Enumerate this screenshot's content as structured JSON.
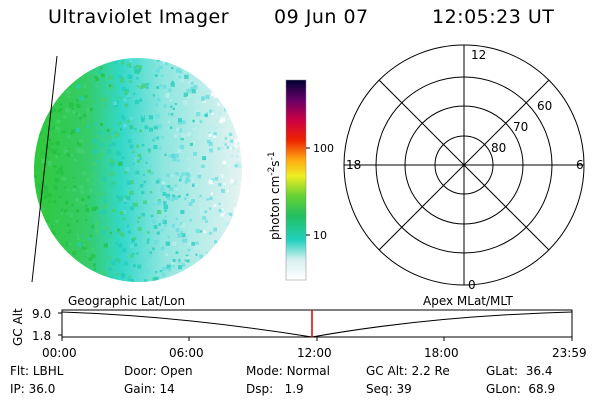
{
  "header": {
    "title": "Ultraviolet Imager",
    "date": "09 Jun 07",
    "time": "12:05:23 UT"
  },
  "colorbar": {
    "unit_main": "photon cm",
    "unit_exp1": "-2",
    "unit_s": "s",
    "unit_exp2": "-1",
    "ticks": [
      "100",
      "10"
    ]
  },
  "polar": {
    "mlt_labels": {
      "top": "12",
      "left": "18",
      "right": "6",
      "bottom": "0"
    },
    "lat_labels": [
      "60",
      "70",
      "80"
    ]
  },
  "timeline": {
    "y_axis_label": "GC Alt",
    "y_ticks": [
      "9.0",
      "1.8"
    ],
    "left_title": "Geographic Lat/Lon",
    "right_title": "Apex MLat/MLT",
    "x_ticks": [
      "00:00",
      "06:00",
      "12:00",
      "18:00",
      "23:59"
    ]
  },
  "info": {
    "row1": [
      {
        "label": "Flt:",
        "value": "LBHL"
      },
      {
        "label": "Door:",
        "value": "Open"
      },
      {
        "label": "Mode:",
        "value": "Normal"
      },
      {
        "label": "GC Alt:",
        "value": "2.2 Re"
      },
      {
        "label": "GLat:",
        "value": "36.4"
      }
    ],
    "row2": [
      {
        "label": "IP:",
        "value": "36.0"
      },
      {
        "label": "Gain:",
        "value": "14"
      },
      {
        "label": "Dsp:",
        "value": "1.9"
      },
      {
        "label": "Seq:",
        "value": "39"
      },
      {
        "label": "GLon:",
        "value": "68.9"
      }
    ]
  },
  "colors": {
    "earth_bright": "#33cc44",
    "earth_mid": "#33ddcc",
    "earth_dim": "#d8f2f2",
    "marker": "#dd0000"
  }
}
